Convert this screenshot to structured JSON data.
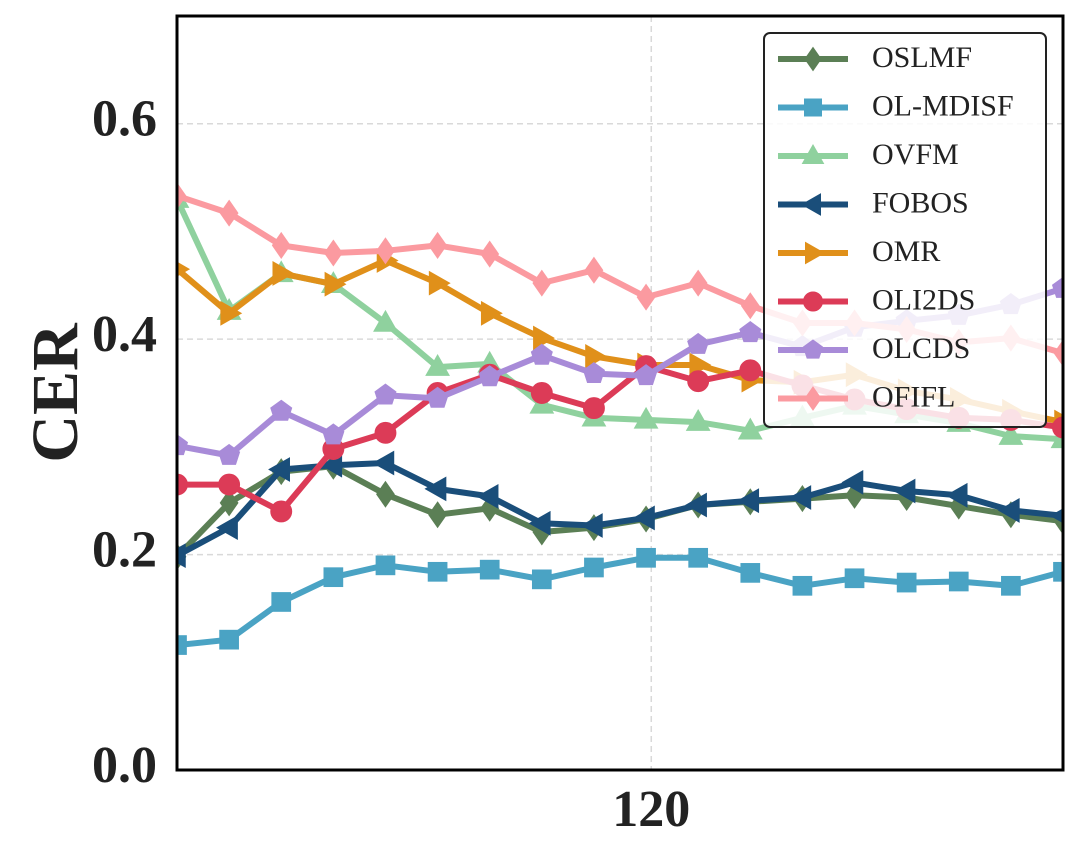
{
  "chart_data": {
    "type": "line",
    "title": "",
    "xlabel": "",
    "ylabel": "CER",
    "xlim": [
      0,
      17
    ],
    "ylim": [
      0,
      0.7
    ],
    "x_ticks": [
      {
        "value": 9.1,
        "label": "120"
      }
    ],
    "y_ticks": [
      {
        "value": 0.0,
        "label": "0.0"
      },
      {
        "value": 0.2,
        "label": "0.2"
      },
      {
        "value": 0.4,
        "label": "0.4"
      },
      {
        "value": 0.6,
        "label": "0.6"
      }
    ],
    "grid": true,
    "legend_position": "top-right",
    "x": [
      0,
      1,
      2,
      3,
      4,
      5,
      6,
      7,
      8,
      9,
      10,
      11,
      12,
      13,
      14,
      15,
      16,
      17
    ],
    "series": [
      {
        "name": "OSLMF",
        "color": "#5b7f55",
        "marker": "diamond",
        "values": [
          0.198,
          0.248,
          0.277,
          0.282,
          0.256,
          0.237,
          0.243,
          0.221,
          0.225,
          0.233,
          0.246,
          0.249,
          0.252,
          0.255,
          0.253,
          0.245,
          0.237,
          0.231
        ]
      },
      {
        "name": "OL-MDISF",
        "color": "#4aa3c4",
        "marker": "square",
        "values": [
          0.116,
          0.121,
          0.156,
          0.179,
          0.19,
          0.184,
          0.186,
          0.177,
          0.188,
          0.197,
          0.197,
          0.183,
          0.171,
          0.178,
          0.174,
          0.175,
          0.171,
          0.184
        ]
      },
      {
        "name": "OVFM",
        "color": "#8fd19e",
        "marker": "triangle-up",
        "values": [
          0.53,
          0.426,
          0.461,
          0.451,
          0.415,
          0.374,
          0.377,
          0.339,
          0.327,
          0.325,
          0.323,
          0.315,
          0.327,
          0.338,
          0.33,
          0.322,
          0.31,
          0.307
        ]
      },
      {
        "name": "FOBOS",
        "color": "#1a4e7a",
        "marker": "triangle-left",
        "values": [
          0.199,
          0.225,
          0.279,
          0.283,
          0.285,
          0.261,
          0.254,
          0.229,
          0.227,
          0.234,
          0.246,
          0.25,
          0.253,
          0.267,
          0.259,
          0.255,
          0.241,
          0.236
        ]
      },
      {
        "name": "OMR",
        "color": "#e0901a",
        "marker": "triangle-right",
        "values": [
          0.465,
          0.424,
          0.461,
          0.451,
          0.473,
          0.452,
          0.424,
          0.401,
          0.384,
          0.376,
          0.376,
          0.362,
          0.36,
          0.367,
          0.352,
          0.344,
          0.333,
          0.323
        ]
      },
      {
        "name": "OLI2DS",
        "color": "#dc3b57",
        "marker": "circle",
        "values": [
          0.265,
          0.265,
          0.24,
          0.298,
          0.313,
          0.35,
          0.367,
          0.35,
          0.336,
          0.375,
          0.361,
          0.371,
          0.357,
          0.344,
          0.335,
          0.327,
          0.325,
          0.318
        ]
      },
      {
        "name": "OLCDS",
        "color": "#a88bd8",
        "marker": "pentagon",
        "values": [
          0.301,
          0.292,
          0.333,
          0.311,
          0.348,
          0.345,
          0.365,
          0.385,
          0.368,
          0.366,
          0.395,
          0.406,
          0.393,
          0.411,
          0.417,
          0.422,
          0.432,
          0.447
        ]
      },
      {
        "name": "OFIFL",
        "color": "#fb9aa0",
        "marker": "diamond",
        "values": [
          0.533,
          0.517,
          0.487,
          0.48,
          0.482,
          0.487,
          0.479,
          0.452,
          0.464,
          0.439,
          0.452,
          0.431,
          0.415,
          0.415,
          0.409,
          0.397,
          0.401,
          0.387
        ]
      }
    ]
  }
}
